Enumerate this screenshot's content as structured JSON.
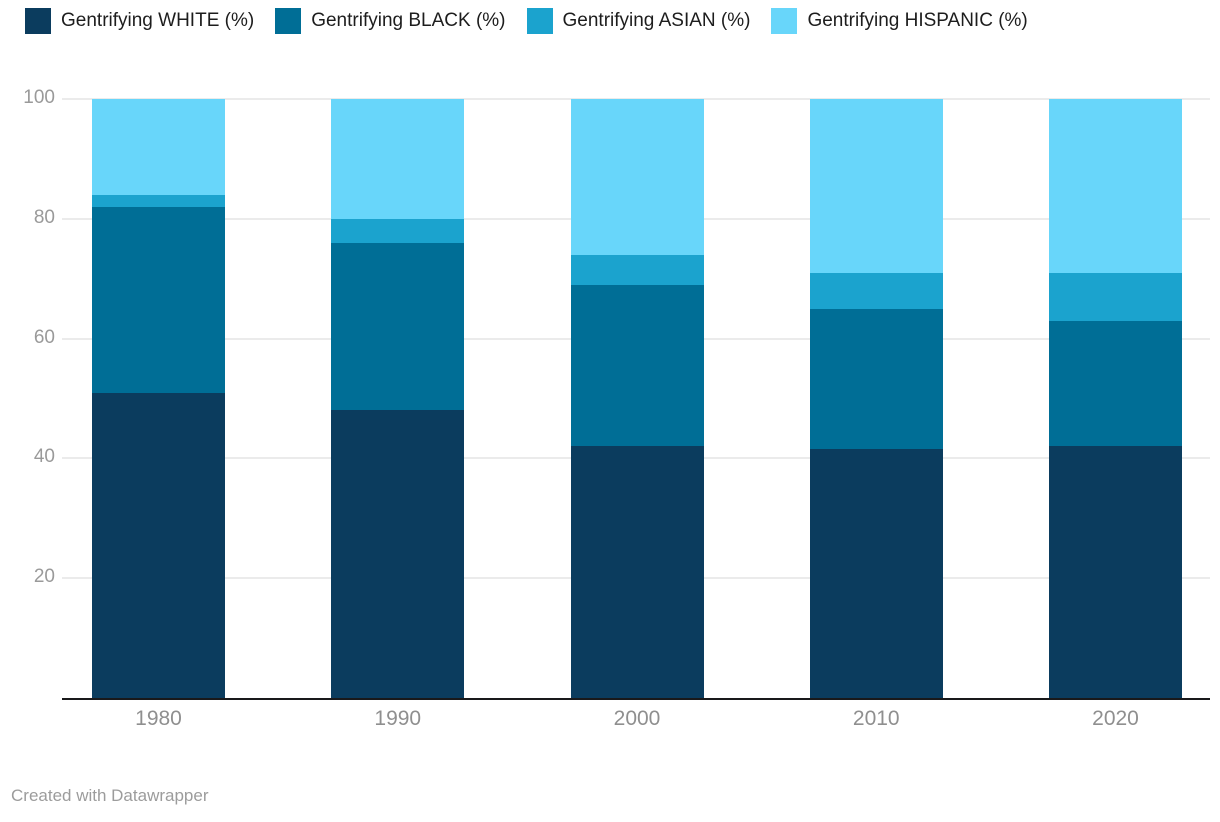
{
  "chart_data": {
    "type": "bar",
    "stacked": true,
    "title": "",
    "xlabel": "",
    "ylabel": "",
    "categories": [
      "1980",
      "1990",
      "2000",
      "2010",
      "2020"
    ],
    "series": [
      {
        "name": "Gentrifying WHITE (%)",
        "color": "#0B3C5E",
        "values": [
          51,
          48,
          42,
          41.5,
          42
        ]
      },
      {
        "name": "Gentrifying BLACK (%)",
        "color": "#006E96",
        "values": [
          31,
          28,
          27,
          23.5,
          21
        ]
      },
      {
        "name": "Gentrifying ASIAN (%)",
        "color": "#1BA3CE",
        "values": [
          2,
          4,
          5,
          6,
          8
        ]
      },
      {
        "name": "Gentrifying HISPANIC (%)",
        "color": "#68D6FA",
        "values": [
          16,
          20,
          26,
          29,
          29
        ]
      }
    ],
    "yticks": [
      20,
      40,
      60,
      80,
      100
    ],
    "ylim": [
      0,
      100
    ],
    "grid": true,
    "legend_position": "top",
    "stack_order_bottom_to_top": [
      "Gentrifying WHITE (%)",
      "Gentrifying BLACK (%)",
      "Gentrifying ASIAN (%)",
      "Gentrifying HISPANIC (%)"
    ]
  },
  "footer": {
    "credit": "Created with Datawrapper"
  }
}
